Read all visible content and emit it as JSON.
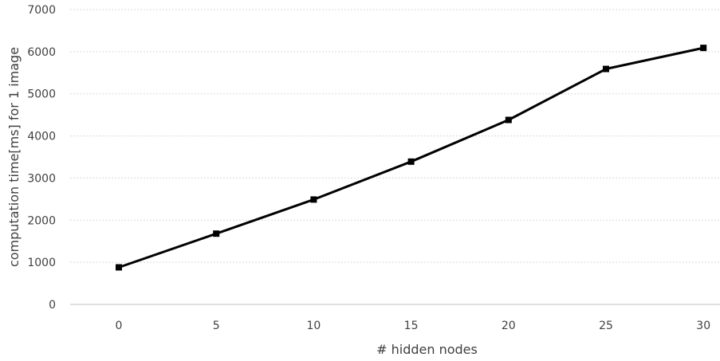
{
  "chart_data": {
    "type": "line",
    "xlabel": "# hidden nodes",
    "ylabel": "computation time[ms] for 1 image",
    "categories": [
      "0",
      "5",
      "10",
      "15",
      "20",
      "25",
      "30"
    ],
    "series": [
      {
        "values": [
          880,
          1680,
          2490,
          3390,
          4380,
          5590,
          6090
        ]
      }
    ],
    "ylim": [
      0,
      7000
    ],
    "yticks": [
      "0",
      "1000",
      "2000",
      "3000",
      "4000",
      "5000",
      "6000",
      "7000"
    ],
    "grid": "horizontal",
    "legend": "none",
    "colors": {
      "line": "#000000",
      "grid": "#d9d9d9",
      "text": "#404040"
    },
    "marker": "square"
  }
}
